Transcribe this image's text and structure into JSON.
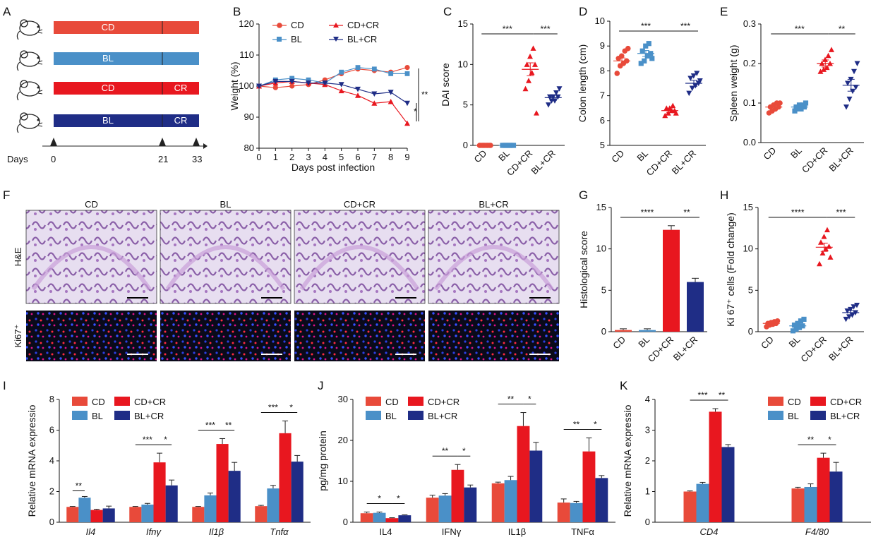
{
  "panels": {
    "A": "A",
    "B": "B",
    "C": "C",
    "D": "D",
    "E": "E",
    "F": "F",
    "G": "G",
    "H": "H",
    "I": "I",
    "J": "J",
    "K": "K"
  },
  "colors": {
    "CD": "#e84a3a",
    "BL": "#4a90c8",
    "CDCR": "#e8171f",
    "BLCR": "#1f2d86"
  },
  "schematic": {
    "rows": [
      {
        "left": "CD",
        "right": "",
        "color": "#e84a3a"
      },
      {
        "left": "BL",
        "right": "",
        "color": "#4a90c8"
      },
      {
        "left": "CD",
        "right": "CR",
        "color": "#e8171f"
      },
      {
        "left": "BL",
        "right": "CR",
        "color": "#1f2d86"
      }
    ],
    "axis_label": "Days",
    "ticks": [
      "0",
      "21",
      "33"
    ]
  },
  "histology": {
    "columns": [
      "CD",
      "BL",
      "CD+CR",
      "BL+CR"
    ],
    "rows": [
      "H&E",
      "Ki67⁺"
    ]
  },
  "chart_data": [
    {
      "id": "B",
      "type": "line",
      "xlabel": "Days post infection",
      "ylabel": "Weight (%)",
      "x": [
        0,
        1,
        2,
        3,
        4,
        5,
        6,
        7,
        8,
        9
      ],
      "xlim": [
        0,
        9
      ],
      "ylim": [
        80,
        120
      ],
      "yticks": [
        80,
        90,
        100,
        110,
        120
      ],
      "legend": [
        "CD",
        "BL",
        "CD+CR",
        "BL+CR"
      ],
      "series": [
        {
          "name": "CD",
          "marker": "circle",
          "values": [
            100,
            99.5,
            100,
            100.5,
            102,
            104,
            105.5,
            105,
            104.5,
            106
          ]
        },
        {
          "name": "BL",
          "marker": "square",
          "values": [
            100,
            102,
            102.5,
            102,
            101,
            104.5,
            106,
            105.5,
            104,
            104
          ]
        },
        {
          "name": "CD+CR",
          "marker": "triangle-up",
          "values": [
            100,
            101,
            101.5,
            101,
            100.5,
            98.5,
            97,
            94.5,
            95,
            88
          ]
        },
        {
          "name": "BL+CR",
          "marker": "triangle-down",
          "values": [
            100,
            101.5,
            101.5,
            101,
            101,
            100.5,
            99,
            97.5,
            98,
            94.5
          ]
        }
      ],
      "significance": [
        {
          "label": "**"
        },
        {
          "label": "*"
        }
      ]
    },
    {
      "id": "C",
      "type": "scatter",
      "ylabel": "DAI score",
      "categories": [
        "CD",
        "BL",
        "CD+CR",
        "BL+CR"
      ],
      "ylim": [
        0,
        15
      ],
      "yticks": [
        0,
        5,
        10,
        15
      ],
      "means": [
        0,
        0,
        9.4,
        5.9
      ],
      "sem": [
        0,
        0,
        0.8,
        0.35
      ],
      "points": [
        [
          0,
          0,
          0,
          0,
          0,
          0,
          0,
          0
        ],
        [
          0,
          0,
          0,
          0,
          0,
          0,
          0,
          0
        ],
        [
          7,
          8,
          9,
          10,
          10,
          11,
          12,
          4
        ],
        [
          5,
          5.5,
          5.5,
          6,
          6,
          6,
          6.5,
          7
        ]
      ],
      "significance": [
        {
          "label": "***"
        },
        {
          "label": "***"
        }
      ]
    },
    {
      "id": "D",
      "type": "scatter",
      "ylabel": "Colon length (cm)",
      "categories": [
        "CD",
        "BL",
        "CD+CR",
        "BL+CR"
      ],
      "ylim": [
        5,
        10
      ],
      "yticks": [
        5,
        6,
        7,
        8,
        9,
        10
      ],
      "means": [
        8.4,
        8.7,
        6.4,
        7.5
      ],
      "sem": [
        0.12,
        0.12,
        0.07,
        0.12
      ],
      "points": [
        [
          7.9,
          8.2,
          8.3,
          8.4,
          8.5,
          8.6,
          8.8,
          8.9
        ],
        [
          8.3,
          8.4,
          8.6,
          8.7,
          8.8,
          9.0,
          9.1,
          8.5
        ],
        [
          6.2,
          6.3,
          6.4,
          6.4,
          6.5,
          6.5,
          6.6,
          6.3
        ],
        [
          7.1,
          7.3,
          7.4,
          7.5,
          7.7,
          7.8,
          7.9,
          7.6
        ]
      ],
      "significance": [
        {
          "label": "***"
        },
        {
          "label": "***"
        }
      ]
    },
    {
      "id": "E",
      "type": "scatter",
      "ylabel": "Spleen weight (g)",
      "categories": [
        "CD",
        "BL",
        "CD+CR",
        "BL+CR"
      ],
      "ylim": [
        0,
        0.3
      ],
      "yticks": [
        0,
        0.1,
        0.2,
        0.3
      ],
      "ytick_labels": [
        "0.0",
        "0.1",
        "0.2",
        "0.3"
      ],
      "means": [
        0.09,
        0.09,
        0.2,
        0.145
      ],
      "sem": [
        0.005,
        0.004,
        0.009,
        0.015
      ],
      "points": [
        [
          0.075,
          0.08,
          0.085,
          0.09,
          0.09,
          0.095,
          0.1,
          0.1
        ],
        [
          0.08,
          0.085,
          0.085,
          0.09,
          0.09,
          0.095,
          0.095,
          0.1
        ],
        [
          0.18,
          0.185,
          0.19,
          0.2,
          0.2,
          0.21,
          0.22,
          0.235
        ],
        [
          0.09,
          0.11,
          0.13,
          0.14,
          0.15,
          0.16,
          0.18,
          0.2
        ]
      ],
      "significance": [
        {
          "label": "***"
        },
        {
          "label": "**"
        }
      ]
    },
    {
      "id": "G",
      "type": "bar",
      "ylabel": "Histological score",
      "categories": [
        "CD",
        "BL",
        "CD+CR",
        "BL+CR"
      ],
      "ylim": [
        0,
        15
      ],
      "yticks": [
        0,
        5,
        10,
        15
      ],
      "values": [
        0.2,
        0.2,
        12.3,
        6.0
      ],
      "err": [
        0.15,
        0.15,
        0.5,
        0.45
      ],
      "significance": [
        {
          "label": "****"
        },
        {
          "label": "**"
        }
      ]
    },
    {
      "id": "H",
      "type": "scatter",
      "ylabel": "Ki 67⁺ cells (Fold change)",
      "categories": [
        "CD",
        "BL",
        "CD+CR",
        "BL+CR"
      ],
      "ylim": [
        0,
        15
      ],
      "yticks": [
        0,
        5,
        10,
        15
      ],
      "means": [
        1.0,
        0.7,
        10.2,
        2.3
      ],
      "sem": [
        0.1,
        0.15,
        0.5,
        0.25
      ],
      "points": [
        [
          0.6,
          0.8,
          0.9,
          1.0,
          1.0,
          1.1,
          1.2,
          1.3
        ],
        [
          0.1,
          0.3,
          0.5,
          0.7,
          0.8,
          1.0,
          1.3,
          1.5
        ],
        [
          8.2,
          9.5,
          10,
          10.3,
          10.8,
          11.5,
          12.3,
          9.0
        ],
        [
          1.5,
          1.8,
          2.0,
          2.3,
          2.5,
          2.7,
          3.0,
          3.2
        ]
      ],
      "significance": [
        {
          "label": "****"
        },
        {
          "label": "***"
        }
      ]
    },
    {
      "id": "I",
      "type": "bar",
      "ylabel": "Relative mRNA expressio",
      "categories": [
        "Il4",
        "Ifnγ",
        "Il1β",
        "Tnfα"
      ],
      "italic_categories": true,
      "ylim": [
        0,
        8
      ],
      "yticks": [
        0,
        2,
        4,
        6,
        8
      ],
      "legend": [
        "CD",
        "CD+CR",
        "BL",
        "BL+CR"
      ],
      "series": [
        {
          "name": "CD",
          "values": [
            1.0,
            1.0,
            1.0,
            1.05
          ],
          "err": [
            0.03,
            0.03,
            0.03,
            0.05
          ]
        },
        {
          "name": "BL",
          "values": [
            1.6,
            1.15,
            1.75,
            2.2
          ],
          "err": [
            0.08,
            0.08,
            0.15,
            0.2
          ]
        },
        {
          "name": "CD+CR",
          "values": [
            0.8,
            3.9,
            5.1,
            5.8
          ],
          "err": [
            0.05,
            0.6,
            0.35,
            0.8
          ]
        },
        {
          "name": "BL+CR",
          "values": [
            0.9,
            2.4,
            3.35,
            3.95
          ],
          "err": [
            0.15,
            0.35,
            0.55,
            0.4
          ]
        }
      ],
      "significance": [
        {
          "label": "**"
        },
        {
          "label": "***"
        },
        {
          "label": "*"
        },
        {
          "label": "***"
        },
        {
          "label": "**"
        },
        {
          "label": "***"
        },
        {
          "label": "*"
        }
      ]
    },
    {
      "id": "J",
      "type": "bar",
      "ylabel": "pg/mg protein",
      "categories": [
        "IL4",
        "IFNγ",
        "IL1β",
        "TNFα"
      ],
      "ylim": [
        0,
        30
      ],
      "yticks": [
        0,
        10,
        20,
        30
      ],
      "legend": [
        "CD",
        "CD+CR",
        "BL",
        "BL+CR"
      ],
      "series": [
        {
          "name": "CD",
          "values": [
            2.2,
            6.0,
            9.5,
            4.8
          ],
          "err": [
            0.3,
            0.6,
            0.3,
            0.9
          ]
        },
        {
          "name": "BL",
          "values": [
            2.3,
            6.5,
            10.3,
            4.7
          ],
          "err": [
            0.2,
            0.5,
            0.9,
            0.4
          ]
        },
        {
          "name": "CD+CR",
          "values": [
            1.0,
            12.8,
            23.5,
            17.3
          ],
          "err": [
            0.1,
            1.3,
            3.3,
            3.3
          ]
        },
        {
          "name": "BL+CR",
          "values": [
            1.7,
            8.5,
            17.5,
            10.8
          ],
          "err": [
            0.1,
            0.6,
            2.0,
            0.6
          ]
        }
      ],
      "significance": [
        {
          "label": "*"
        },
        {
          "label": "*"
        },
        {
          "label": "**"
        },
        {
          "label": "*"
        },
        {
          "label": "**"
        },
        {
          "label": "*"
        },
        {
          "label": "**"
        },
        {
          "label": "*"
        }
      ]
    },
    {
      "id": "K",
      "type": "bar",
      "ylabel": "Relative mRNA expressio",
      "categories": [
        "CD4",
        "F4/80"
      ],
      "italic_categories": true,
      "ylim": [
        0,
        4
      ],
      "yticks": [
        0,
        1,
        2,
        3,
        4
      ],
      "legend": [
        "CD",
        "CD+CR",
        "BL",
        "BL+CR"
      ],
      "series": [
        {
          "name": "CD",
          "values": [
            1.0,
            1.1
          ],
          "err": [
            0.02,
            0.04
          ]
        },
        {
          "name": "BL",
          "values": [
            1.25,
            1.15
          ],
          "err": [
            0.05,
            0.1
          ]
        },
        {
          "name": "CD+CR",
          "values": [
            3.6,
            2.1
          ],
          "err": [
            0.1,
            0.15
          ]
        },
        {
          "name": "BL+CR",
          "values": [
            2.45,
            1.65
          ],
          "err": [
            0.08,
            0.3
          ]
        }
      ],
      "significance": [
        {
          "label": "***"
        },
        {
          "label": "**"
        },
        {
          "label": "**"
        },
        {
          "label": "*"
        }
      ]
    }
  ]
}
